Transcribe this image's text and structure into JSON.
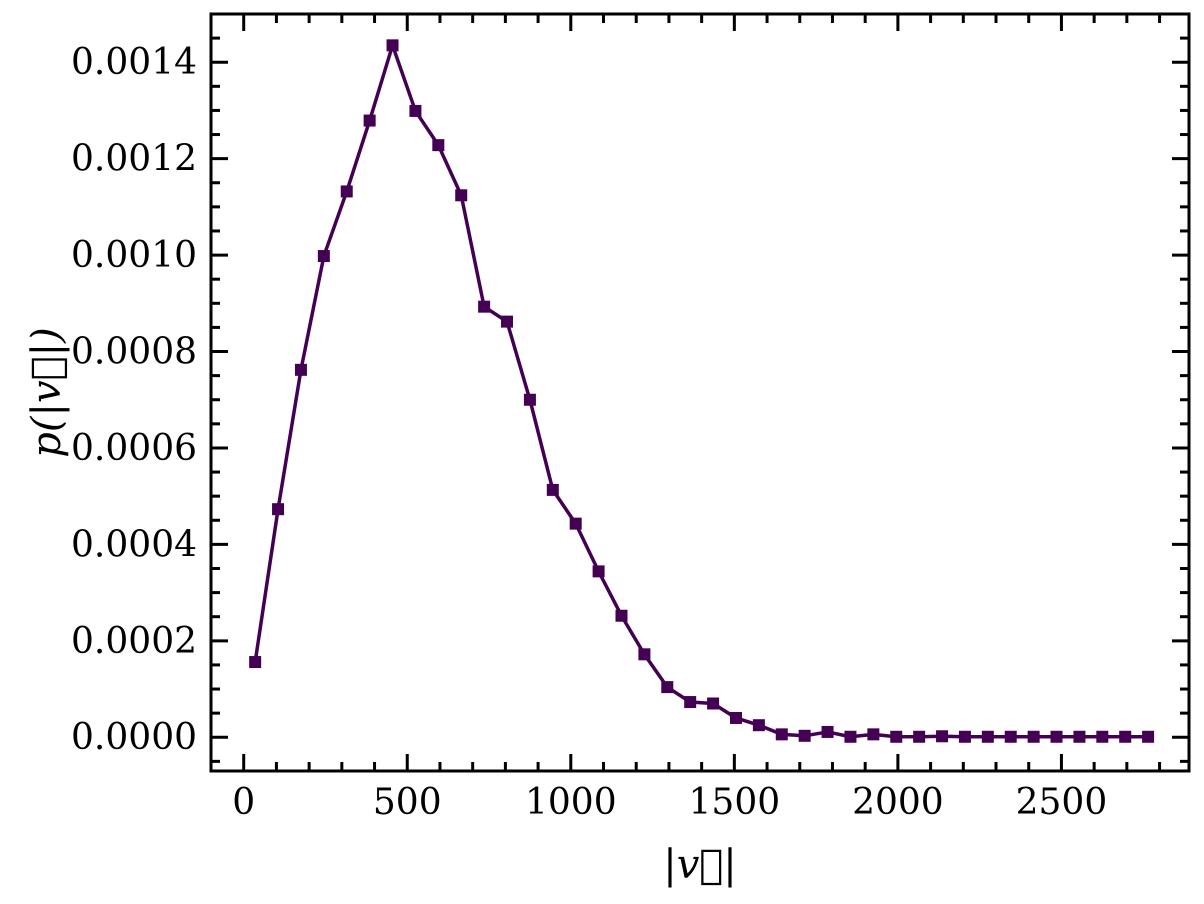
{
  "chart_data": {
    "type": "line",
    "title": "",
    "xlabel": "|v⃗|",
    "ylabel": "p(|v⃗|)",
    "xlim": [
      -100,
      2890
    ],
    "ylim": [
      -7e-05,
      0.0015
    ],
    "x_major_ticks": [
      0,
      500,
      1000,
      1500,
      2000,
      2500
    ],
    "x_tick_labels": [
      "0",
      "500",
      "1000",
      "1500",
      "2000",
      "2500"
    ],
    "x_minor_step": 100,
    "y_major_ticks": [
      0,
      0.0002,
      0.0004,
      0.0006,
      0.0008,
      0.001,
      0.0012,
      0.0014
    ],
    "y_tick_labels": [
      "0.0000",
      "0.0002",
      "0.0004",
      "0.0006",
      "0.0008",
      "0.0010",
      "0.0012",
      "0.0014"
    ],
    "y_minor_step": 5e-05,
    "grid": false,
    "legend": "none",
    "series": [
      {
        "color": "#440154",
        "marker": "square",
        "x": [
          35,
          105,
          175,
          245,
          315,
          385,
          455,
          525,
          595,
          665,
          735,
          805,
          875,
          945,
          1015,
          1085,
          1155,
          1225,
          1295,
          1365,
          1435,
          1505,
          1575,
          1645,
          1715,
          1785,
          1855,
          1925,
          1995,
          2065,
          2135,
          2205,
          2275,
          2345,
          2415,
          2485,
          2555,
          2625,
          2695,
          2765
        ],
        "y": [
          0.000156,
          0.000473,
          0.000762,
          0.000998,
          0.001132,
          0.001279,
          0.001435,
          0.001299,
          0.001228,
          0.001124,
          0.000893,
          0.000862,
          0.0007,
          0.000513,
          0.000443,
          0.000344,
          0.000252,
          0.000172,
          0.000104,
          7.3e-05,
          7e-05,
          4e-05,
          2.5e-05,
          6e-06,
          3e-06,
          1.1e-05,
          1e-06,
          6e-06,
          1e-06,
          1e-06,
          2e-06,
          1e-06,
          1e-06,
          1e-06,
          1e-06,
          1e-06,
          1e-06,
          1e-06,
          1e-06,
          1e-06
        ]
      }
    ]
  }
}
